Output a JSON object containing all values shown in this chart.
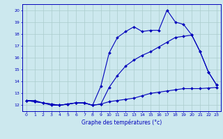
{
  "xlabel": "Graphe des températures (°c)",
  "bg_color": "#cce8ee",
  "grid_color": "#aacccc",
  "line_color": "#0000bb",
  "hours": [
    0,
    1,
    2,
    3,
    4,
    5,
    6,
    7,
    8,
    9,
    10,
    11,
    12,
    13,
    14,
    15,
    16,
    17,
    18,
    19,
    20,
    21,
    22,
    23
  ],
  "temp_max": [
    12.4,
    12.4,
    12.2,
    12.0,
    12.0,
    12.1,
    12.2,
    12.2,
    12.0,
    13.6,
    16.4,
    17.7,
    18.2,
    18.6,
    18.2,
    18.3,
    18.3,
    20.0,
    19.0,
    18.8,
    17.9,
    16.5,
    14.8,
    13.7
  ],
  "temp_mid": [
    12.4,
    12.3,
    12.2,
    12.1,
    12.0,
    12.1,
    12.2,
    12.2,
    12.0,
    12.1,
    13.5,
    14.5,
    15.3,
    15.8,
    16.2,
    16.5,
    16.9,
    17.3,
    17.7,
    17.8,
    17.9,
    16.5,
    14.8,
    13.7
  ],
  "temp_min": [
    12.4,
    12.3,
    12.2,
    12.1,
    12.0,
    12.1,
    12.2,
    12.2,
    12.0,
    12.1,
    12.3,
    12.4,
    12.5,
    12.6,
    12.8,
    13.0,
    13.1,
    13.2,
    13.3,
    13.4,
    13.4,
    13.4,
    13.45,
    13.5
  ],
  "ylim": [
    11.5,
    20.5
  ],
  "xlim": [
    -0.5,
    23.5
  ],
  "yticks": [
    12,
    13,
    14,
    15,
    16,
    17,
    18,
    19,
    20
  ],
  "ylabel_fontsize": 5.5,
  "xlabel_fontsize": 5.5,
  "tick_fontsize": 4.5
}
